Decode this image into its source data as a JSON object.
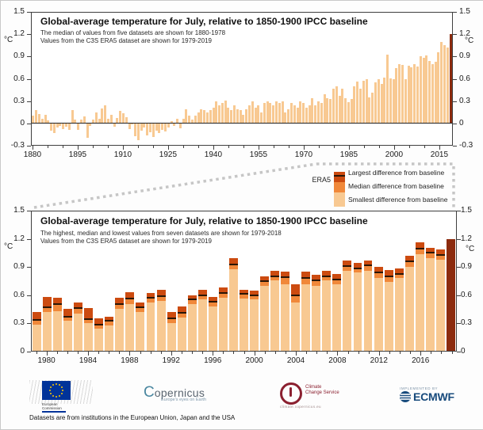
{
  "colors": {
    "bar_smallest": "#F8C992",
    "bar_median": "#F0883A",
    "bar_largest": "#CC4B10",
    "bar_era5": "#8C2B0E",
    "median_line": "#2A1606",
    "axis": "#3f3f3f",
    "dash": "#c6c6c6"
  },
  "legend": {
    "dataset_label": "ERA5",
    "items": [
      {
        "label": "Largest difference from baseline",
        "color": "#CC4B10"
      },
      {
        "label": "Median difference from baseline",
        "color": "#F0883A"
      },
      {
        "label": "Smallest difference from baseline",
        "color": "#F8C992"
      }
    ]
  },
  "footer": {
    "text": "Datasets are from institutions in the European Union, Japan and the USA"
  },
  "logos": {
    "eu": {
      "line1": "European",
      "line2": "Commission"
    },
    "copernicus": {
      "c": "C",
      "rest": "opernicus",
      "tagline": "Europe's eyes on Earth"
    },
    "c3s": {
      "line1": "Climate",
      "line2": "Change Service",
      "url": "climate.copernicus.eu"
    },
    "ecmwf": {
      "pre": "IMPLEMENTED BY",
      "name": "ECMWF"
    }
  },
  "chart_data": [
    {
      "type": "bar",
      "title": "Global-average temperature for July, relative to 1850-1900 IPCC baseline",
      "subtitle1": "The median of values from five datasets are shown for 1880-1978",
      "subtitle2": "Values from the C3S ERA5 dataset are shown for 1979-2019",
      "ylabel": "°C",
      "ylim": [
        -0.3,
        1.5
      ],
      "y_ticks": [
        1.5,
        1.2,
        0.9,
        0.6,
        0.3,
        0,
        -0.3
      ],
      "x_major_ticks": [
        1880,
        1895,
        1910,
        1925,
        1940,
        1955,
        1970,
        1985,
        2000,
        2015
      ],
      "x_minor_step": 5,
      "highlight_year": 2019,
      "years": [
        1880,
        1881,
        1882,
        1883,
        1884,
        1885,
        1886,
        1887,
        1888,
        1889,
        1890,
        1891,
        1892,
        1893,
        1894,
        1895,
        1896,
        1897,
        1898,
        1899,
        1900,
        1901,
        1902,
        1903,
        1904,
        1905,
        1906,
        1907,
        1908,
        1909,
        1910,
        1911,
        1912,
        1913,
        1914,
        1915,
        1916,
        1917,
        1918,
        1919,
        1920,
        1921,
        1922,
        1923,
        1924,
        1925,
        1926,
        1927,
        1928,
        1929,
        1930,
        1931,
        1932,
        1933,
        1934,
        1935,
        1936,
        1937,
        1938,
        1939,
        1940,
        1941,
        1942,
        1943,
        1944,
        1945,
        1946,
        1947,
        1948,
        1949,
        1950,
        1951,
        1952,
        1953,
        1954,
        1955,
        1956,
        1957,
        1958,
        1959,
        1960,
        1961,
        1962,
        1963,
        1964,
        1965,
        1966,
        1967,
        1968,
        1969,
        1970,
        1971,
        1972,
        1973,
        1974,
        1975,
        1976,
        1977,
        1978,
        1979,
        1980,
        1981,
        1982,
        1983,
        1984,
        1985,
        1986,
        1987,
        1988,
        1989,
        1990,
        1991,
        1992,
        1993,
        1994,
        1995,
        1996,
        1997,
        1998,
        1999,
        2000,
        2001,
        2002,
        2003,
        2004,
        2005,
        2006,
        2007,
        2008,
        2009,
        2010,
        2011,
        2012,
        2013,
        2014,
        2015,
        2016,
        2017,
        2018,
        2019
      ],
      "values": [
        0.1,
        0.17,
        0.12,
        0.06,
        0.11,
        0.03,
        -0.11,
        -0.14,
        -0.06,
        -0.04,
        -0.08,
        -0.05,
        -0.09,
        0.17,
        0.05,
        -0.09,
        0.04,
        0.09,
        -0.2,
        -0.04,
        0.04,
        0.14,
        0.06,
        0.2,
        0.24,
        0.06,
        0.11,
        -0.05,
        0.07,
        0.16,
        0.13,
        0.08,
        -0.08,
        -0.02,
        -0.18,
        -0.24,
        -0.11,
        -0.06,
        -0.17,
        -0.13,
        -0.19,
        -0.11,
        -0.14,
        -0.09,
        -0.12,
        -0.06,
        0.02,
        -0.04,
        0.06,
        -0.07,
        0.06,
        0.19,
        0.1,
        0.04,
        0.1,
        0.14,
        0.19,
        0.17,
        0.14,
        0.17,
        0.21,
        0.29,
        0.24,
        0.27,
        0.3,
        0.21,
        0.17,
        0.24,
        0.19,
        0.17,
        0.11,
        0.19,
        0.24,
        0.29,
        0.21,
        0.24,
        0.14,
        0.27,
        0.29,
        0.27,
        0.24,
        0.29,
        0.27,
        0.29,
        0.14,
        0.19,
        0.27,
        0.24,
        0.21,
        0.29,
        0.27,
        0.21,
        0.24,
        0.34,
        0.24,
        0.29,
        0.27,
        0.39,
        0.34,
        0.33,
        0.47,
        0.5,
        0.37,
        0.46,
        0.34,
        0.28,
        0.32,
        0.5,
        0.56,
        0.47,
        0.57,
        0.59,
        0.35,
        0.41,
        0.55,
        0.6,
        0.53,
        0.62,
        0.93,
        0.61,
        0.6,
        0.75,
        0.8,
        0.79,
        0.6,
        0.78,
        0.76,
        0.8,
        0.77,
        0.91,
        0.89,
        0.92,
        0.84,
        0.8,
        0.83,
        0.96,
        1.1,
        1.06,
        1.03,
        1.21
      ]
    },
    {
      "type": "stacked-range-bar",
      "title": "Global-average temperature for July, relative to 1850-1900 IPCC baseline",
      "subtitle1": "The highest, median and lowest values from seven datasets are shown for 1979-2018",
      "subtitle2": "Values from the C3S ERA5 dataset are shown for 1979-2019",
      "ylabel": "°C",
      "ylim": [
        0,
        1.5
      ],
      "y_ticks": [
        1.5,
        1.2,
        0.9,
        0.6,
        0.3,
        0
      ],
      "x_major_ticks": [
        1980,
        1984,
        1988,
        1992,
        1996,
        2000,
        2004,
        2008,
        2012,
        2016
      ],
      "x_minor_step": 1,
      "years": [
        1979,
        1980,
        1981,
        1982,
        1983,
        1984,
        1985,
        1986,
        1987,
        1988,
        1989,
        1990,
        1991,
        1992,
        1993,
        1994,
        1995,
        1996,
        1997,
        1998,
        1999,
        2000,
        2001,
        2002,
        2003,
        2004,
        2005,
        2006,
        2007,
        2008,
        2009,
        2010,
        2011,
        2012,
        2013,
        2014,
        2015,
        2016,
        2017,
        2018
      ],
      "lowest": [
        0.28,
        0.42,
        0.43,
        0.32,
        0.4,
        0.3,
        0.24,
        0.27,
        0.45,
        0.5,
        0.42,
        0.52,
        0.54,
        0.3,
        0.36,
        0.5,
        0.55,
        0.48,
        0.57,
        0.88,
        0.56,
        0.55,
        0.7,
        0.76,
        0.72,
        0.52,
        0.72,
        0.7,
        0.76,
        0.72,
        0.86,
        0.84,
        0.86,
        0.78,
        0.74,
        0.78,
        0.9,
        1.04,
        1.0,
        0.98
      ],
      "median": [
        0.33,
        0.47,
        0.5,
        0.37,
        0.46,
        0.34,
        0.28,
        0.32,
        0.5,
        0.56,
        0.47,
        0.57,
        0.59,
        0.35,
        0.41,
        0.55,
        0.6,
        0.53,
        0.62,
        0.93,
        0.61,
        0.6,
        0.75,
        0.8,
        0.79,
        0.6,
        0.78,
        0.76,
        0.8,
        0.77,
        0.91,
        0.89,
        0.92,
        0.84,
        0.8,
        0.83,
        0.96,
        1.1,
        1.06,
        1.03
      ],
      "highest": [
        0.42,
        0.58,
        0.57,
        0.45,
        0.52,
        0.46,
        0.35,
        0.37,
        0.57,
        0.63,
        0.52,
        0.62,
        0.66,
        0.42,
        0.48,
        0.6,
        0.66,
        0.58,
        0.68,
        1.0,
        0.66,
        0.65,
        0.8,
        0.86,
        0.85,
        0.72,
        0.85,
        0.82,
        0.86,
        0.83,
        0.97,
        0.95,
        0.97,
        0.9,
        0.87,
        0.89,
        1.02,
        1.17,
        1.11,
        1.09
      ],
      "era5_2019": 1.2
    }
  ]
}
